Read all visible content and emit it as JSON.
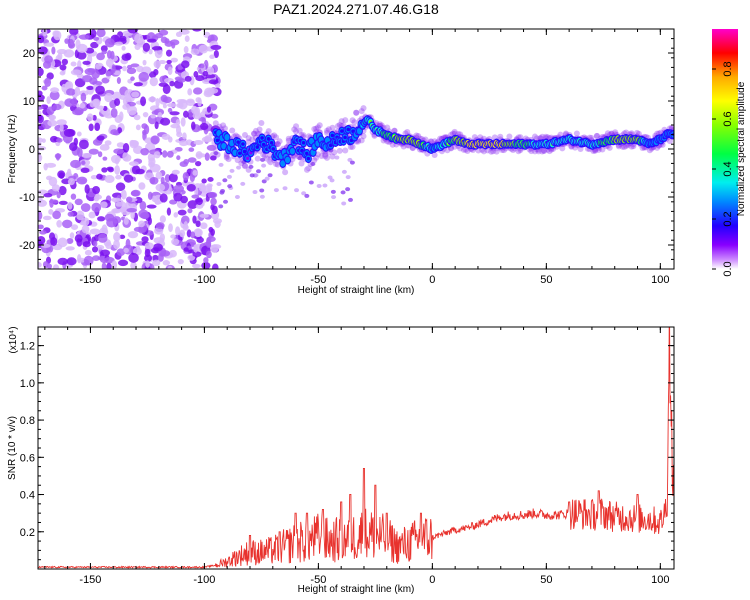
{
  "chart_data": [
    {
      "type": "heatmap",
      "title": "PAZ1.2024.271.07.46.G18",
      "xlabel": "Height of straight line (km)",
      "ylabel": "Frequency (Hz)",
      "xlim": [
        -173,
        106
      ],
      "ylim": [
        -25,
        25
      ],
      "x_ticks": [
        -150,
        -100,
        -50,
        0,
        50,
        100
      ],
      "x_tick_labels": [
        "-150",
        "-100",
        "-50",
        "0",
        "50",
        "100"
      ],
      "y_ticks": [
        -20,
        -10,
        0,
        10,
        20
      ],
      "y_tick_labels": [
        "-20",
        "-10",
        "0",
        "10",
        "20"
      ],
      "noise_region_x": [
        -173,
        -94
      ],
      "ridge": {
        "x": [
          -95,
          -90,
          -85,
          -80,
          -75,
          -70,
          -65,
          -60,
          -55,
          -50,
          -45,
          -40,
          -35,
          -32,
          -28,
          -25,
          -20,
          -15,
          -10,
          -5,
          0,
          5,
          10,
          15,
          20,
          25,
          30,
          40,
          50,
          60,
          70,
          80,
          90,
          95,
          100,
          103,
          106
        ],
        "freq": [
          2,
          1.5,
          0,
          -1,
          2,
          0,
          -2,
          2,
          -1,
          2,
          1,
          3,
          3,
          5,
          6,
          4,
          3,
          2,
          2,
          1,
          0,
          1,
          2,
          1,
          1,
          1,
          1,
          1,
          1,
          2,
          1,
          2,
          2,
          1,
          2,
          3,
          3
        ],
        "amplitude": [
          0.3,
          0.4,
          0.3,
          0.2,
          0.3,
          0.3,
          0.4,
          0.3,
          0.3,
          0.4,
          0.3,
          0.3,
          0.3,
          0.4,
          0.6,
          0.6,
          0.7,
          0.8,
          0.85,
          0.8,
          0.5,
          0.6,
          0.8,
          0.9,
          1.0,
          1.0,
          0.95,
          0.7,
          0.6,
          0.6,
          0.6,
          0.8,
          0.85,
          0.4,
          0.3,
          0.3,
          0.3
        ]
      },
      "colorbar": {
        "label": "Normalized spectral amplitude",
        "ticks": [
          0.0,
          0.2,
          0.4,
          0.6,
          0.8
        ],
        "tick_labels": [
          "0.0",
          "0.2",
          "0.4",
          "0.6",
          "0.8"
        ],
        "range": [
          0,
          0.96
        ],
        "colormap": [
          "#ffffff",
          "#cc88ff",
          "#8800ff",
          "#2200ff",
          "#0088ff",
          "#00eeee",
          "#00ff44",
          "#88ff00",
          "#ffff00",
          "#ffaa00",
          "#ff0000",
          "#ff00cc"
        ]
      },
      "grid": false
    },
    {
      "type": "line",
      "xlabel": "Height of straight line (km)",
      "ylabel": "SNR (10 * v/v)",
      "y_multiplier": "(x10⁴)",
      "xlim": [
        -173,
        106
      ],
      "ylim": [
        0,
        1.3
      ],
      "x_ticks": [
        -150,
        -100,
        -50,
        0,
        50,
        100
      ],
      "x_tick_labels": [
        "-150",
        "-100",
        "-50",
        "0",
        "50",
        "100"
      ],
      "y_ticks": [
        0.2,
        0.4,
        0.6,
        0.8,
        1.0,
        1.2
      ],
      "y_tick_labels": [
        "0.2",
        "0.4",
        "0.6",
        "0.8",
        "1.0",
        "1.2"
      ],
      "line_color": "#e8322d",
      "series": [
        {
          "x": [
            -173,
            -150,
            -120,
            -100,
            -95,
            -90,
            -85,
            -80,
            -75,
            -70,
            -65,
            -60,
            -55,
            -50,
            -45,
            -40,
            -35,
            -30,
            -25,
            -20,
            -15,
            -10,
            -5,
            0,
            5,
            10,
            15,
            20,
            25,
            30,
            35,
            40,
            45,
            50,
            55,
            60,
            65,
            70,
            75,
            80,
            85,
            90,
            95,
            100,
            102,
            103,
            104,
            105,
            106
          ],
          "y": [
            0.01,
            0.01,
            0.01,
            0.01,
            0.02,
            0.04,
            0.07,
            0.09,
            0.09,
            0.1,
            0.12,
            0.14,
            0.15,
            0.17,
            0.15,
            0.16,
            0.17,
            0.19,
            0.18,
            0.16,
            0.12,
            0.14,
            0.16,
            0.17,
            0.19,
            0.21,
            0.22,
            0.24,
            0.26,
            0.28,
            0.29,
            0.29,
            0.3,
            0.29,
            0.29,
            0.3,
            0.3,
            0.29,
            0.3,
            0.28,
            0.28,
            0.27,
            0.27,
            0.25,
            0.3,
            0.4,
            1.29,
            0.7,
            0.4
          ],
          "spikes": [
            [
              -80,
              0.18
            ],
            [
              -67,
              0.2
            ],
            [
              -60,
              0.3
            ],
            [
              -55,
              0.3
            ],
            [
              -48,
              0.32
            ],
            [
              -40,
              0.36
            ],
            [
              -36,
              0.4
            ],
            [
              -30,
              0.54
            ],
            [
              -25,
              0.45
            ],
            [
              -20,
              0.3
            ],
            [
              -5,
              0.3
            ],
            [
              60,
              0.36
            ],
            [
              73,
              0.42
            ],
            [
              90,
              0.4
            ]
          ]
        }
      ],
      "grid": false
    }
  ]
}
